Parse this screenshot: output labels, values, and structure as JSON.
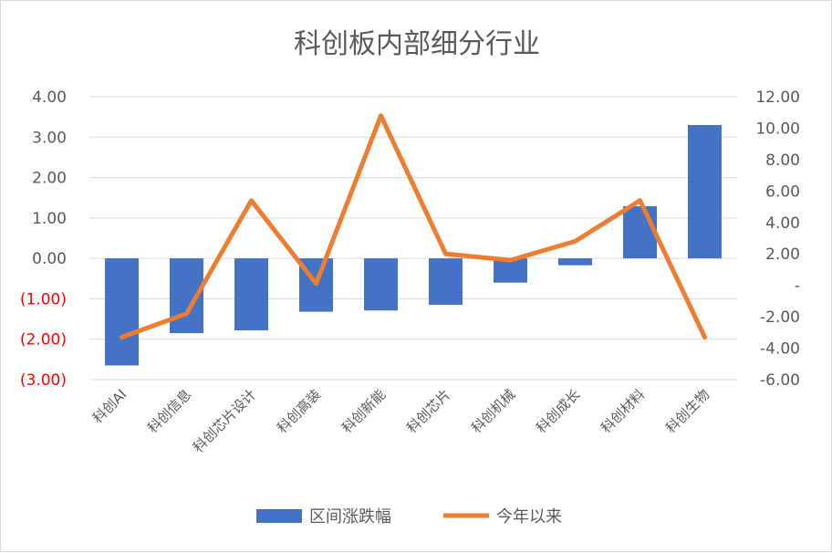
{
  "chart_data": {
    "type": "bar",
    "title": "科创板内部细分行业",
    "categories": [
      "科创AI",
      "科创信息",
      "科创芯片设计",
      "科创高装",
      "科创新能",
      "科创芯片",
      "科创机械",
      "科创成长",
      "科创材料",
      "科创生物"
    ],
    "series": [
      {
        "name": "区间涨跌幅",
        "type": "bar",
        "axis": "left",
        "color": "#4472c4",
        "values": [
          -2.65,
          -1.85,
          -1.78,
          -1.32,
          -1.29,
          -1.15,
          -0.6,
          -0.17,
          1.29,
          3.3
        ]
      },
      {
        "name": "今年以来",
        "type": "line",
        "axis": "right",
        "color": "#ed7d31",
        "values": [
          -3.3,
          -1.8,
          5.4,
          0.1,
          10.8,
          2.0,
          1.6,
          2.8,
          5.4,
          -3.3
        ]
      }
    ],
    "y_left": {
      "ylim": [
        -3,
        4
      ],
      "ticks": [
        4,
        3,
        2,
        1,
        0,
        -1,
        -2,
        -3
      ],
      "tick_labels": [
        "4.00",
        "3.00",
        "2.00",
        "1.00",
        "0.00",
        "(1.00)",
        "(2.00)",
        "(3.00)"
      ],
      "negative_color": "#ff0000"
    },
    "y_right": {
      "ylim": [
        -6,
        12
      ],
      "ticks": [
        12,
        10,
        8,
        6,
        4,
        2,
        0,
        -2,
        -4,
        -6
      ],
      "tick_labels": [
        "12.00",
        "10.00",
        "8.00",
        "6.00",
        "4.00",
        "2.00",
        "-",
        "-2.00",
        "-4.00",
        "-6.00"
      ]
    },
    "grid": true,
    "legend_position": "bottom"
  }
}
